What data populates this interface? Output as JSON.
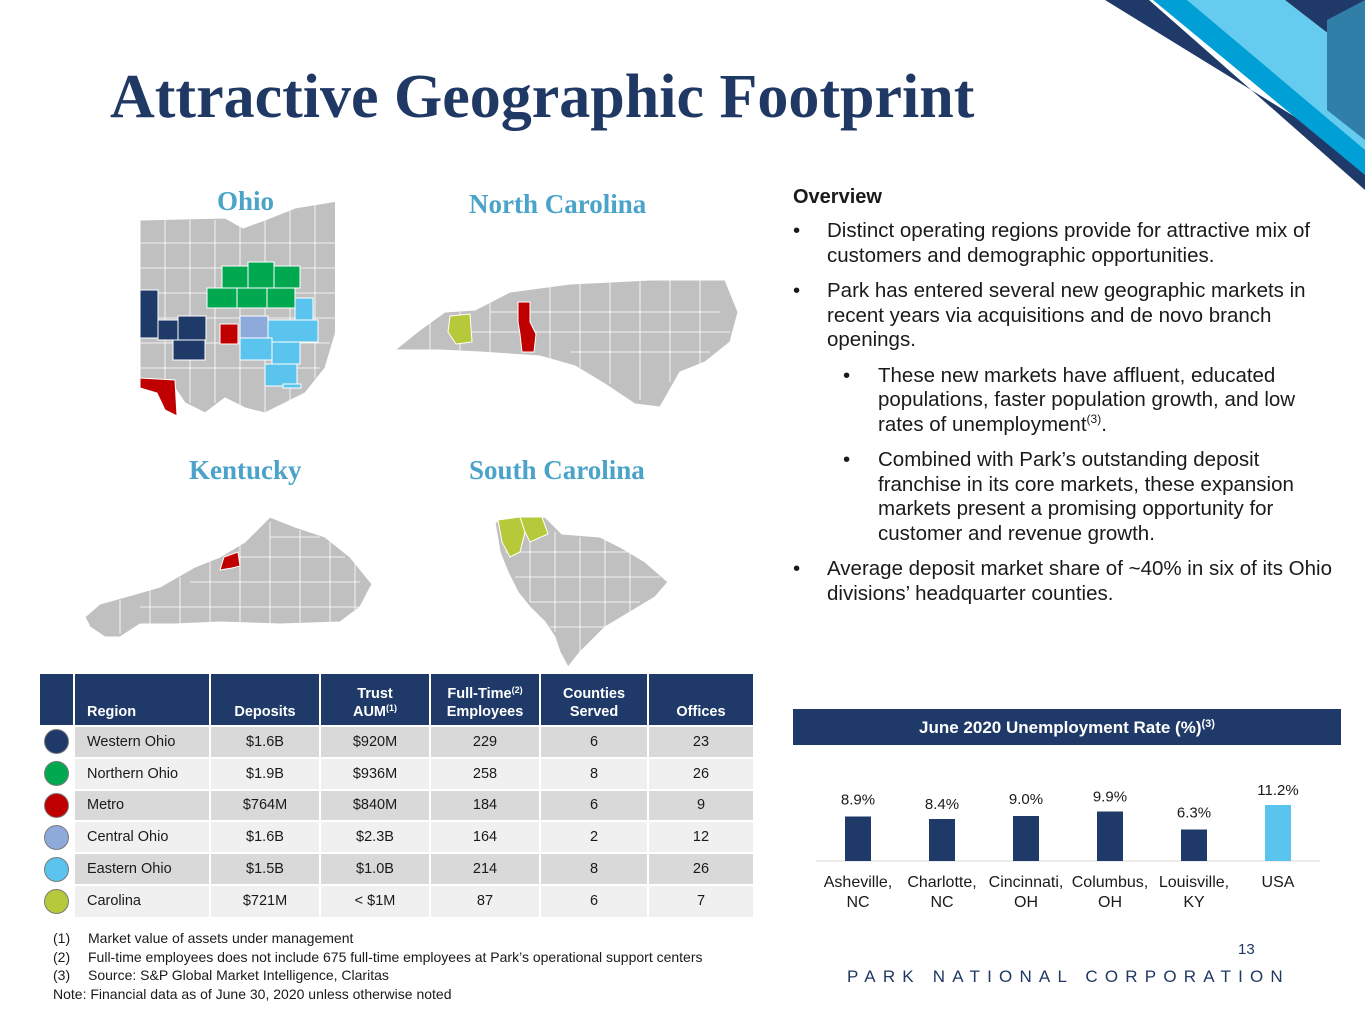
{
  "title": "Attractive Geographic Footprint",
  "colors": {
    "navy": "#1f3a68",
    "western_ohio": "#1f3a68",
    "northern_ohio": "#00a94f",
    "metro": "#c00000",
    "central_ohio": "#8eaadb",
    "eastern_ohio": "#5bc4ee",
    "carolina": "#b5c93b",
    "map_gray": "#c0c0c0",
    "usa_bar": "#5bc4ee",
    "city_bar": "#1f3a68"
  },
  "maps": {
    "ohio": "Ohio",
    "north_carolina": "North Carolina",
    "kentucky": "Kentucky",
    "south_carolina": "South Carolina"
  },
  "overview": {
    "heading": "Overview",
    "bullet_1": "Distinct operating regions provide for attractive mix of customers and demographic opportunities.",
    "bullet_2": "Park has entered several new geographic markets in recent years via acquisitions and de novo branch openings.",
    "sub_bullet_1": "These new markets have affluent, educated populations, faster population growth, and low rates of unemployment",
    "sub_bullet_1_sup": "(3)",
    "sub_bullet_1_end": ".",
    "sub_bullet_2": "Combined with Park’s outstanding deposit franchise in its core markets, these expansion markets present a promising opportunity for customer and revenue growth.",
    "bullet_3": "Average deposit market share of ~40% in six of its Ohio divisions’ headquarter counties.",
    "bullet_symbol": "•"
  },
  "table": {
    "headers": {
      "region": "Region",
      "deposits": "Deposits",
      "trust_top": "Trust",
      "trust_bottom": "AUM",
      "trust_sup": "(1)",
      "ft_top": "Full-Time",
      "ft_sup": "(2)",
      "ft_bottom": "Employees",
      "counties_top": "Counties",
      "counties_bottom": "Served",
      "offices": "Offices"
    },
    "rows": [
      {
        "region": "Western Ohio",
        "deposits": "$1.6B",
        "trust": "$920M",
        "employees": "229",
        "counties": "6",
        "offices": "23",
        "color": "#1f3a68"
      },
      {
        "region": "Northern Ohio",
        "deposits": "$1.9B",
        "trust": "$936M",
        "employees": "258",
        "counties": "8",
        "offices": "26",
        "color": "#00a94f"
      },
      {
        "region": "Metro",
        "deposits": "$764M",
        "trust": "$840M",
        "employees": "184",
        "counties": "6",
        "offices": "9",
        "color": "#c00000"
      },
      {
        "region": "Central Ohio",
        "deposits": "$1.6B",
        "trust": "$2.3B",
        "employees": "164",
        "counties": "2",
        "offices": "12",
        "color": "#8eaadb"
      },
      {
        "region": "Eastern Ohio",
        "deposits": "$1.5B",
        "trust": "$1.0B",
        "employees": "214",
        "counties": "8",
        "offices": "26",
        "color": "#5bc4ee"
      },
      {
        "region": "Carolina",
        "deposits": "$721M",
        "trust": "< $1M",
        "employees": "87",
        "counties": "6",
        "offices": "7",
        "color": "#b5c93b"
      }
    ]
  },
  "chart_title": "June 2020 Unemployment Rate (%)",
  "chart_title_sup": "(3)",
  "chart_data": {
    "type": "bar",
    "title": "June 2020 Unemployment Rate (%)",
    "categories": [
      [
        "Asheville,",
        "NC"
      ],
      [
        "Charlotte,",
        "NC"
      ],
      [
        "Cincinnati,",
        "OH"
      ],
      [
        "Columbus,",
        "OH"
      ],
      [
        "Louisville,",
        "KY"
      ],
      [
        "USA",
        ""
      ]
    ],
    "values": [
      8.9,
      8.4,
      9.0,
      9.9,
      6.3,
      11.2
    ],
    "labels": [
      "8.9%",
      "8.4%",
      "9.0%",
      "9.9%",
      "6.3%",
      "11.2%"
    ],
    "colors": [
      "#1f3a68",
      "#1f3a68",
      "#1f3a68",
      "#1f3a68",
      "#1f3a68",
      "#5bc4ee"
    ],
    "xlabel": "",
    "ylabel": "",
    "ylim": [
      0,
      12
    ],
    "grid": false
  },
  "footnotes": [
    {
      "num": "(1)",
      "text": "Market value of assets under management"
    },
    {
      "num": "(2)",
      "text": "Full-time employees does not include 675 full-time employees at Park’s operational support centers"
    },
    {
      "num": "(3)",
      "text": "Source: S&P Global Market Intelligence, Claritas"
    }
  ],
  "note": "Note: Financial data as of June 30, 2020 unless otherwise noted",
  "page_number": "13",
  "company": "PARK NATIONAL CORPORATION"
}
